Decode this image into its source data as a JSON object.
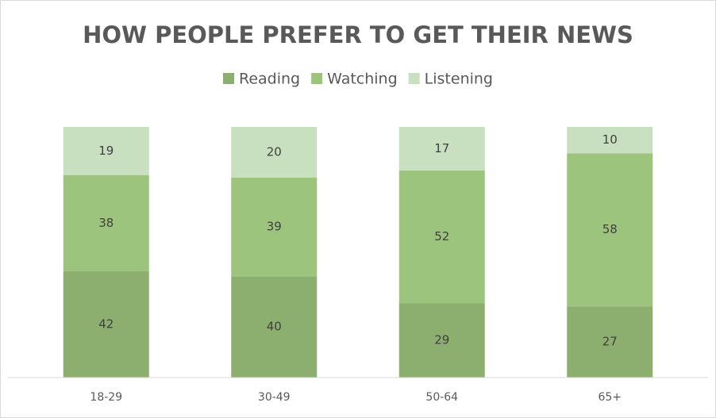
{
  "chart_data": {
    "type": "bar",
    "stack": "percent",
    "title": "HOW PEOPLE PREFER TO GET THEIR NEWS",
    "categories": [
      "18-29",
      "30-49",
      "50-64",
      "65+"
    ],
    "series": [
      {
        "name": "Reading",
        "color": "#8caf70",
        "values": [
          42,
          40,
          29,
          27
        ]
      },
      {
        "name": "Watching",
        "color": "#9dc47c",
        "values": [
          38,
          39,
          52,
          58
        ]
      },
      {
        "name": "Listening",
        "color": "#c8dfc0",
        "values": [
          19,
          20,
          17,
          10
        ]
      }
    ],
    "legend": "top",
    "data_labels": true
  }
}
